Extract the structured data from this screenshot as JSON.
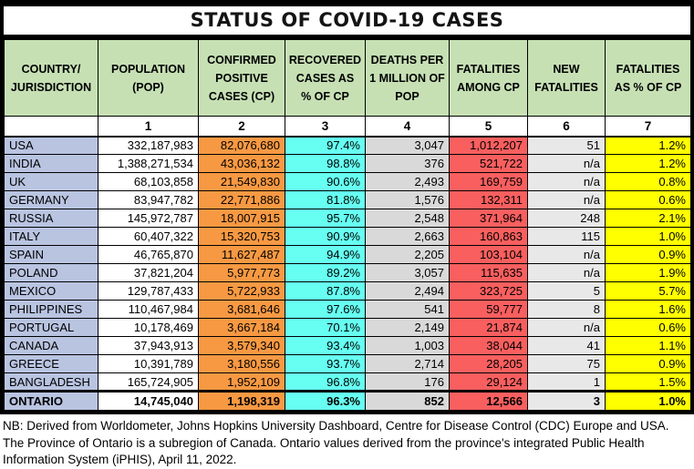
{
  "title": "STATUS OF COVID-19 CASES",
  "table": {
    "columns": [
      {
        "key": "country",
        "label": "COUNTRY/\nJURISDICTION"
      },
      {
        "key": "population",
        "label": "POPULATION\n(POP)"
      },
      {
        "key": "confirmed",
        "label": "CONFIRMED\nPOSITIVE\nCASES (CP)"
      },
      {
        "key": "recovered",
        "label": "RECOVERED\nCASES AS\n% OF CP"
      },
      {
        "key": "deaths",
        "label": "DEATHS PER\n1 MILLION OF\nPOP"
      },
      {
        "key": "fatalities",
        "label": "FATALITIES\nAMONG CP"
      },
      {
        "key": "newfat",
        "label": "NEW\nFATALITIES"
      },
      {
        "key": "pct",
        "label": "FATALITIES\nAS % OF CP"
      }
    ],
    "column_numbers": [
      "",
      "1",
      "2",
      "3",
      "4",
      "5",
      "6",
      "7"
    ],
    "rows": [
      {
        "country": "USA",
        "population": "332,187,983",
        "confirmed": "82,076,680",
        "recovered": "97.4%",
        "deaths": "3,047",
        "fatalities": "1,012,207",
        "newfat": "51",
        "pct": "1.2%"
      },
      {
        "country": "INDIA",
        "population": "1,388,271,534",
        "confirmed": "43,036,132",
        "recovered": "98.8%",
        "deaths": "376",
        "fatalities": "521,722",
        "newfat": "n/a",
        "pct": "1.2%"
      },
      {
        "country": "UK",
        "population": "68,103,858",
        "confirmed": "21,549,830",
        "recovered": "90.6%",
        "deaths": "2,493",
        "fatalities": "169,759",
        "newfat": "n/a",
        "pct": "0.8%"
      },
      {
        "country": "GERMANY",
        "population": "83,947,782",
        "confirmed": "22,771,886",
        "recovered": "81.8%",
        "deaths": "1,576",
        "fatalities": "132,311",
        "newfat": "n/a",
        "pct": "0.6%"
      },
      {
        "country": "RUSSIA",
        "population": "145,972,787",
        "confirmed": "18,007,915",
        "recovered": "95.7%",
        "deaths": "2,548",
        "fatalities": "371,964",
        "newfat": "248",
        "pct": "2.1%"
      },
      {
        "country": "ITALY",
        "population": "60,407,322",
        "confirmed": "15,320,753",
        "recovered": "90.9%",
        "deaths": "2,663",
        "fatalities": "160,863",
        "newfat": "115",
        "pct": "1.0%"
      },
      {
        "country": "SPAIN",
        "population": "46,765,870",
        "confirmed": "11,627,487",
        "recovered": "94.9%",
        "deaths": "2,205",
        "fatalities": "103,104",
        "newfat": "n/a",
        "pct": "0.9%"
      },
      {
        "country": "POLAND",
        "population": "37,821,204",
        "confirmed": "5,977,773",
        "recovered": "89.2%",
        "deaths": "3,057",
        "fatalities": "115,635",
        "newfat": "n/a",
        "pct": "1.9%"
      },
      {
        "country": "MEXICO",
        "population": "129,787,433",
        "confirmed": "5,722,933",
        "recovered": "87.8%",
        "deaths": "2,494",
        "fatalities": "323,725",
        "newfat": "5",
        "pct": "5.7%"
      },
      {
        "country": "PHILIPPINES",
        "population": "110,467,984",
        "confirmed": "3,681,646",
        "recovered": "97.6%",
        "deaths": "541",
        "fatalities": "59,777",
        "newfat": "8",
        "pct": "1.6%"
      },
      {
        "country": "PORTUGAL",
        "population": "10,178,469",
        "confirmed": "3,667,184",
        "recovered": "70.1%",
        "deaths": "2,149",
        "fatalities": "21,874",
        "newfat": "n/a",
        "pct": "0.6%"
      },
      {
        "country": "CANADA",
        "population": "37,943,913",
        "confirmed": "3,579,340",
        "recovered": "93.4%",
        "deaths": "1,003",
        "fatalities": "38,044",
        "newfat": "41",
        "pct": "1.1%"
      },
      {
        "country": "GREECE",
        "population": "10,391,789",
        "confirmed": "3,180,556",
        "recovered": "93.7%",
        "deaths": "2,714",
        "fatalities": "28,205",
        "newfat": "75",
        "pct": "0.9%"
      },
      {
        "country": "BANGLADESH",
        "population": "165,724,905",
        "confirmed": "1,952,109",
        "recovered": "96.8%",
        "deaths": "176",
        "fatalities": "29,124",
        "newfat": "1",
        "pct": "1.5%"
      }
    ],
    "total_row": {
      "country": "ONTARIO",
      "population": "14,745,040",
      "confirmed": "1,198,319",
      "recovered": "96.3%",
      "deaths": "852",
      "fatalities": "12,566",
      "newfat": "3",
      "pct": "1.0%"
    }
  },
  "footnote": "NB: Derived from Worldometer, Johns Hopkins University Dashboard, Centre for Disease Control (CDC) Europe and USA. The Province of Ontario is a subregion of Canada. Ontario values derived from the province's integrated Public Health Information System (iPHIS), April 11, 2022.",
  "colors": {
    "header_green": "#c6e0b4",
    "country_blue": "#b9c4e1",
    "confirmed_orange": "#f79943",
    "recovered_cyan": "#66fff2",
    "deaths_gray": "#d9d9d9",
    "fatalities_red": "#f95f5f",
    "newfat_gray": "#e8e8e8",
    "pct_yellow": "#ffff00",
    "border_black": "#000000"
  }
}
